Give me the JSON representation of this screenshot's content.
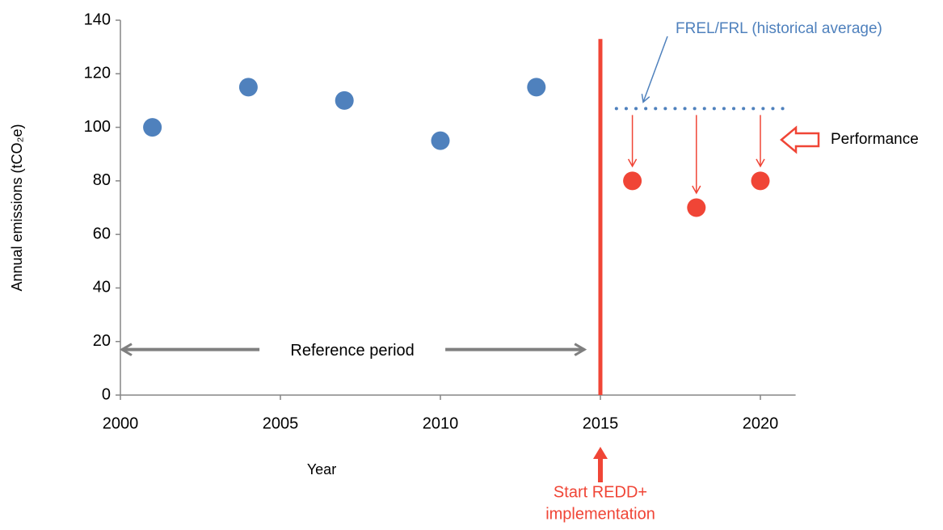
{
  "chart_data": {
    "type": "scatter",
    "x_label": "Year",
    "y_label": "Annual emissions (tCO₂e)",
    "xlim": [
      2000,
      2021
    ],
    "ylim": [
      0,
      140
    ],
    "xticks": [
      2000,
      2005,
      2010,
      2015,
      2020
    ],
    "yticks": [
      0,
      20,
      40,
      60,
      80,
      100,
      120,
      140
    ],
    "series": [
      {
        "color": "#4f81bd",
        "x": [
          2001,
          2004,
          2007,
          2010,
          2013
        ],
        "values": [
          100,
          115,
          110,
          95,
          115
        ]
      },
      {
        "color": "#f04536",
        "x": [
          2016,
          2018,
          2020
        ],
        "values": [
          80,
          70,
          80
        ]
      }
    ],
    "reference_line": {
      "label": "FREL/FRL (historical average)",
      "value": 107,
      "x": [
        2015.5,
        2021
      ],
      "color": "#4f81bd"
    },
    "implementation_start": {
      "label": [
        "Start REDD+",
        "implementation"
      ],
      "x": 2015,
      "y_top": 133,
      "color": "#f04536"
    },
    "reference_period": {
      "label": "Reference period",
      "x": [
        2000,
        2014.5
      ],
      "y": 17,
      "color": "#7f7f7f"
    },
    "performance": {
      "label": "Performance"
    }
  }
}
